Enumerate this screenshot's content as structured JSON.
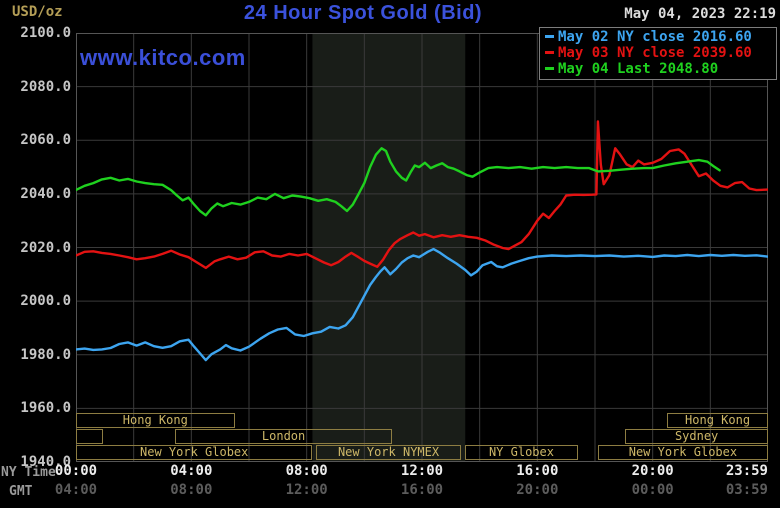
{
  "header": {
    "unit_label": "USD/oz",
    "title": "24 Hour Spot Gold (Bid)",
    "timestamp": "May 04, 2023 22:19",
    "watermark": "www.kitco.com"
  },
  "x_axis": {
    "ny_label": "NY Time",
    "gmt_label": "GMT"
  },
  "colors": {
    "background": "#000000",
    "title_blue": "#3b52dc",
    "gold_label": "#b49e56",
    "grid": "#3a3a3a",
    "plot_border": "#555555",
    "nymex_band": "#191d18",
    "session_border": "#8d7d42",
    "session_text": "#cdb768",
    "y_tick_text": "#c6c6c6",
    "ny_tick_text": "#ededed",
    "gmt_tick_text": "#5c5c5c",
    "timestamp_text": "#dcdcdc"
  },
  "chart_data": {
    "type": "line",
    "title": "24 Hour Spot Gold (Bid)",
    "xlabel": "NY Time",
    "ylabel": "USD/oz",
    "x_range_hours": [
      0,
      24
    ],
    "y_range": [
      1940,
      2100
    ],
    "y_step": 20,
    "grid_x_step_hours": 2,
    "grid": true,
    "legend_position": "top-right",
    "highlight_band_hours": [
      8.2,
      13.5
    ],
    "y_ticks": [
      "2100.0",
      "2080.0",
      "2060.0",
      "2040.0",
      "2020.0",
      "2000.0",
      "1980.0",
      "1960.0",
      "1940.0"
    ],
    "x_ticks": [
      {
        "hour": 0,
        "ny": "00:00",
        "gmt": "04:00"
      },
      {
        "hour": 4,
        "ny": "04:00",
        "gmt": "08:00"
      },
      {
        "hour": 8,
        "ny": "08:00",
        "gmt": "12:00"
      },
      {
        "hour": 12,
        "ny": "12:00",
        "gmt": "16:00"
      },
      {
        "hour": 16,
        "ny": "16:00",
        "gmt": "20:00"
      },
      {
        "hour": 20,
        "ny": "20:00",
        "gmt": "00:00"
      },
      {
        "hour": 24,
        "ny": "23:59",
        "gmt": "03:59",
        "align": "right"
      }
    ],
    "series": [
      {
        "name": "May 02",
        "legend": "May 02 NY close 2016.60",
        "close_value": 2016.6,
        "color": "#3da5f0",
        "points": [
          [
            0,
            1982
          ],
          [
            0.3,
            1982.3
          ],
          [
            0.6,
            1981.8
          ],
          [
            0.9,
            1982
          ],
          [
            1.2,
            1982.5
          ],
          [
            1.5,
            1984
          ],
          [
            1.8,
            1984.6
          ],
          [
            2.1,
            1983.4
          ],
          [
            2.4,
            1984.6
          ],
          [
            2.7,
            1983.2
          ],
          [
            3.0,
            1982.6
          ],
          [
            3.3,
            1983.2
          ],
          [
            3.6,
            1985
          ],
          [
            3.9,
            1985.6
          ],
          [
            4.1,
            1983
          ],
          [
            4.3,
            1980.5
          ],
          [
            4.5,
            1978
          ],
          [
            4.7,
            1980.2
          ],
          [
            5.0,
            1982
          ],
          [
            5.2,
            1983.6
          ],
          [
            5.4,
            1982.4
          ],
          [
            5.7,
            1981.6
          ],
          [
            6.0,
            1983
          ],
          [
            6.4,
            1986
          ],
          [
            6.7,
            1988
          ],
          [
            7.0,
            1989.4
          ],
          [
            7.3,
            1990
          ],
          [
            7.6,
            1987.6
          ],
          [
            7.9,
            1987
          ],
          [
            8.2,
            1988
          ],
          [
            8.5,
            1988.6
          ],
          [
            8.8,
            1990.4
          ],
          [
            9.1,
            1989.8
          ],
          [
            9.35,
            1991
          ],
          [
            9.6,
            1994
          ],
          [
            9.85,
            1999
          ],
          [
            10.0,
            2002
          ],
          [
            10.2,
            2006
          ],
          [
            10.4,
            2009
          ],
          [
            10.55,
            2011
          ],
          [
            10.7,
            2012.6
          ],
          [
            10.9,
            2010
          ],
          [
            11.1,
            2012
          ],
          [
            11.3,
            2014.4
          ],
          [
            11.5,
            2016
          ],
          [
            11.7,
            2017
          ],
          [
            11.9,
            2016.4
          ],
          [
            12.2,
            2018.4
          ],
          [
            12.4,
            2019.4
          ],
          [
            12.6,
            2018.2
          ],
          [
            12.9,
            2016
          ],
          [
            13.2,
            2014
          ],
          [
            13.5,
            2011.6
          ],
          [
            13.7,
            2009.6
          ],
          [
            13.9,
            2011
          ],
          [
            14.1,
            2013.4
          ],
          [
            14.4,
            2014.6
          ],
          [
            14.6,
            2013
          ],
          [
            14.8,
            2012.6
          ],
          [
            15.1,
            2014
          ],
          [
            15.4,
            2015
          ],
          [
            15.7,
            2016
          ],
          [
            16.0,
            2016.6
          ],
          [
            16.5,
            2017
          ],
          [
            17.0,
            2016.8
          ],
          [
            17.5,
            2017
          ],
          [
            18.0,
            2016.8
          ],
          [
            18.5,
            2017
          ],
          [
            19.0,
            2016.6
          ],
          [
            19.5,
            2016.9
          ],
          [
            20.0,
            2016.5
          ],
          [
            20.4,
            2017
          ],
          [
            20.8,
            2016.8
          ],
          [
            21.2,
            2017.2
          ],
          [
            21.6,
            2016.8
          ],
          [
            22.0,
            2017.2
          ],
          [
            22.4,
            2016.9
          ],
          [
            22.8,
            2017.2
          ],
          [
            23.2,
            2016.9
          ],
          [
            23.6,
            2017.1
          ],
          [
            23.98,
            2016.6
          ]
        ]
      },
      {
        "name": "May 03",
        "legend": "May 03 NY close 2039.60",
        "close_value": 2039.6,
        "color": "#e31212",
        "points": [
          [
            0,
            2017
          ],
          [
            0.3,
            2018.4
          ],
          [
            0.6,
            2018.6
          ],
          [
            0.9,
            2018
          ],
          [
            1.2,
            2017.6
          ],
          [
            1.5,
            2017
          ],
          [
            1.8,
            2016.4
          ],
          [
            2.1,
            2015.6
          ],
          [
            2.4,
            2016
          ],
          [
            2.7,
            2016.6
          ],
          [
            3.0,
            2017.6
          ],
          [
            3.3,
            2018.8
          ],
          [
            3.6,
            2017.4
          ],
          [
            3.9,
            2016.4
          ],
          [
            4.2,
            2014.4
          ],
          [
            4.5,
            2012.4
          ],
          [
            4.8,
            2014.8
          ],
          [
            5.0,
            2015.6
          ],
          [
            5.3,
            2016.6
          ],
          [
            5.6,
            2015.6
          ],
          [
            5.9,
            2016.2
          ],
          [
            6.2,
            2018.2
          ],
          [
            6.5,
            2018.6
          ],
          [
            6.8,
            2017
          ],
          [
            7.1,
            2016.6
          ],
          [
            7.4,
            2017.6
          ],
          [
            7.7,
            2017
          ],
          [
            8.0,
            2017.6
          ],
          [
            8.3,
            2016
          ],
          [
            8.6,
            2014.4
          ],
          [
            8.85,
            2013.4
          ],
          [
            9.1,
            2014.6
          ],
          [
            9.35,
            2016.6
          ],
          [
            9.55,
            2018
          ],
          [
            9.8,
            2016.4
          ],
          [
            10.0,
            2015
          ],
          [
            10.2,
            2014
          ],
          [
            10.45,
            2012.8
          ],
          [
            10.65,
            2015.5
          ],
          [
            10.85,
            2019
          ],
          [
            11.05,
            2021.6
          ],
          [
            11.25,
            2023.2
          ],
          [
            11.5,
            2024.6
          ],
          [
            11.7,
            2025.6
          ],
          [
            11.9,
            2024.4
          ],
          [
            12.1,
            2025
          ],
          [
            12.4,
            2023.8
          ],
          [
            12.7,
            2024.6
          ],
          [
            13.0,
            2024
          ],
          [
            13.3,
            2024.6
          ],
          [
            13.6,
            2024
          ],
          [
            13.9,
            2023.6
          ],
          [
            14.2,
            2022.6
          ],
          [
            14.5,
            2021
          ],
          [
            14.8,
            2019.8
          ],
          [
            15.0,
            2019.4
          ],
          [
            15.2,
            2020.6
          ],
          [
            15.45,
            2022
          ],
          [
            15.7,
            2025
          ],
          [
            16.0,
            2030
          ],
          [
            16.2,
            2032.6
          ],
          [
            16.4,
            2031
          ],
          [
            16.6,
            2033.6
          ],
          [
            16.8,
            2036
          ],
          [
            17.0,
            2039.4
          ],
          [
            17.3,
            2039.7
          ],
          [
            17.6,
            2039.6
          ],
          [
            17.9,
            2039.7
          ],
          [
            18.05,
            2039.8
          ],
          [
            18.1,
            2067
          ],
          [
            18.2,
            2051
          ],
          [
            18.3,
            2043.6
          ],
          [
            18.5,
            2047
          ],
          [
            18.7,
            2057
          ],
          [
            18.85,
            2055
          ],
          [
            19.1,
            2051
          ],
          [
            19.3,
            2050
          ],
          [
            19.5,
            2052.4
          ],
          [
            19.7,
            2051
          ],
          [
            20.0,
            2051.6
          ],
          [
            20.3,
            2053
          ],
          [
            20.6,
            2056
          ],
          [
            20.9,
            2056.6
          ],
          [
            21.1,
            2055
          ],
          [
            21.4,
            2050
          ],
          [
            21.6,
            2046.6
          ],
          [
            21.85,
            2047.6
          ],
          [
            22.1,
            2045
          ],
          [
            22.35,
            2043
          ],
          [
            22.6,
            2042.4
          ],
          [
            22.85,
            2044
          ],
          [
            23.1,
            2044.4
          ],
          [
            23.35,
            2042
          ],
          [
            23.6,
            2041.4
          ],
          [
            23.98,
            2041.6
          ]
        ]
      },
      {
        "name": "May 04",
        "legend": "May 04 Last 2048.80",
        "last_value": 2048.8,
        "color": "#1fd11f",
        "points": [
          [
            0,
            2041.5
          ],
          [
            0.3,
            2043
          ],
          [
            0.6,
            2044
          ],
          [
            0.9,
            2045.4
          ],
          [
            1.2,
            2046
          ],
          [
            1.5,
            2045
          ],
          [
            1.8,
            2045.6
          ],
          [
            2.1,
            2044.6
          ],
          [
            2.4,
            2044
          ],
          [
            2.7,
            2043.6
          ],
          [
            3.0,
            2043.4
          ],
          [
            3.3,
            2041.4
          ],
          [
            3.5,
            2039.4
          ],
          [
            3.7,
            2037.6
          ],
          [
            3.9,
            2038.6
          ],
          [
            4.1,
            2036
          ],
          [
            4.3,
            2033.6
          ],
          [
            4.5,
            2032
          ],
          [
            4.7,
            2034.6
          ],
          [
            4.9,
            2036.4
          ],
          [
            5.1,
            2035.4
          ],
          [
            5.4,
            2036.6
          ],
          [
            5.7,
            2036
          ],
          [
            6.0,
            2037
          ],
          [
            6.3,
            2038.6
          ],
          [
            6.6,
            2038
          ],
          [
            6.9,
            2040
          ],
          [
            7.2,
            2038.4
          ],
          [
            7.5,
            2039.4
          ],
          [
            7.8,
            2039
          ],
          [
            8.1,
            2038.4
          ],
          [
            8.4,
            2037.4
          ],
          [
            8.7,
            2038
          ],
          [
            9.0,
            2037
          ],
          [
            9.2,
            2035.4
          ],
          [
            9.4,
            2033.6
          ],
          [
            9.6,
            2036
          ],
          [
            9.8,
            2040
          ],
          [
            10.0,
            2044
          ],
          [
            10.2,
            2050
          ],
          [
            10.4,
            2054.6
          ],
          [
            10.6,
            2057
          ],
          [
            10.75,
            2056
          ],
          [
            10.9,
            2052
          ],
          [
            11.1,
            2048.4
          ],
          [
            11.3,
            2046
          ],
          [
            11.45,
            2045
          ],
          [
            11.6,
            2048
          ],
          [
            11.75,
            2050.6
          ],
          [
            11.9,
            2050
          ],
          [
            12.1,
            2051.6
          ],
          [
            12.3,
            2049.6
          ],
          [
            12.5,
            2050.6
          ],
          [
            12.7,
            2051.4
          ],
          [
            12.9,
            2050
          ],
          [
            13.1,
            2049.4
          ],
          [
            13.3,
            2048.4
          ],
          [
            13.55,
            2047
          ],
          [
            13.75,
            2046.4
          ],
          [
            14.0,
            2048
          ],
          [
            14.3,
            2049.6
          ],
          [
            14.6,
            2050
          ],
          [
            15.0,
            2049.6
          ],
          [
            15.4,
            2050
          ],
          [
            15.8,
            2049.4
          ],
          [
            16.2,
            2050
          ],
          [
            16.6,
            2049.6
          ],
          [
            17.0,
            2050
          ],
          [
            17.4,
            2049.6
          ],
          [
            17.8,
            2049.6
          ],
          [
            18.1,
            2048.4
          ],
          [
            18.5,
            2048.6
          ],
          [
            18.9,
            2049
          ],
          [
            19.3,
            2049.4
          ],
          [
            19.7,
            2049.6
          ],
          [
            20.0,
            2049.6
          ],
          [
            20.4,
            2050.6
          ],
          [
            20.8,
            2051.4
          ],
          [
            21.2,
            2052
          ],
          [
            21.6,
            2052.6
          ],
          [
            21.9,
            2052
          ],
          [
            22.1,
            2050.4
          ],
          [
            22.32,
            2048.8
          ]
        ]
      }
    ],
    "sessions": [
      {
        "row": 0,
        "start": 0,
        "end": 5.5,
        "label": "Hong Kong"
      },
      {
        "row": 0,
        "start": 20.5,
        "end": 24,
        "label": "Hong Kong"
      },
      {
        "row": 1,
        "start": 0,
        "end": 0.95,
        "label": ""
      },
      {
        "row": 1,
        "start": 3.45,
        "end": 10.95,
        "label": "London"
      },
      {
        "row": 1,
        "start": 19.05,
        "end": 24,
        "label": "Sydney"
      },
      {
        "row": 2,
        "start": 0,
        "end": 8.2,
        "label": "New York Globex"
      },
      {
        "row": 2,
        "start": 8.33,
        "end": 13.35,
        "label": "New York NYMEX"
      },
      {
        "row": 2,
        "start": 13.5,
        "end": 17.4,
        "label": "NY Globex"
      },
      {
        "row": 2,
        "start": 18.1,
        "end": 24,
        "label": "New York Globex"
      }
    ]
  }
}
